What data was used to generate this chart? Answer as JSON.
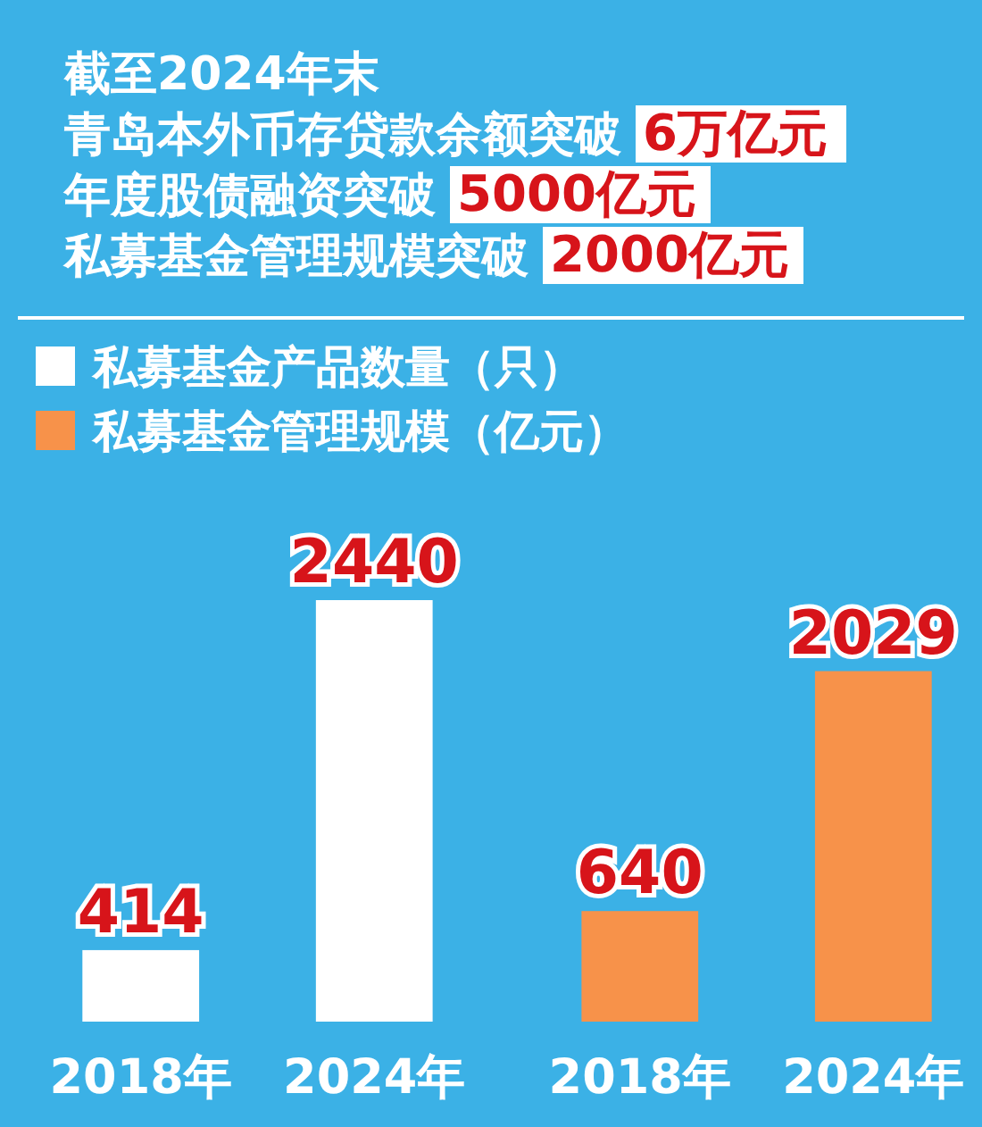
{
  "chart_data": {
    "type": "bar",
    "title": "截至2024年末",
    "annotations": [
      "青岛本外币存贷款余额突破 6万亿元",
      "年度股债融资突破 5000亿元",
      "私募基金管理规模突破 2000亿元"
    ],
    "categories": [
      "2018年",
      "2024年",
      "2018年",
      "2024年"
    ],
    "series": [
      {
        "name": "私募基金产品数量（只）",
        "color": "#ffffff",
        "values": [
          414,
          2440,
          null,
          null
        ]
      },
      {
        "name": "私募基金管理规模（亿元）",
        "color": "#f7924a",
        "values": [
          null,
          null,
          640,
          2029
        ]
      }
    ],
    "data_labels": true,
    "legend": "top left"
  }
}
